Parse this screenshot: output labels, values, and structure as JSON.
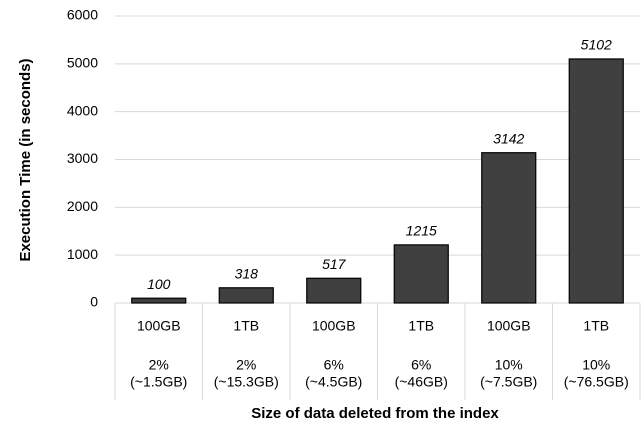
{
  "chart_data": {
    "type": "bar",
    "y_label": "Execution Time (in seconds)",
    "x_label": "Size of data deleted from the index",
    "categories": [
      "100GB",
      "1TB",
      "100GB",
      "1TB",
      "100GB",
      "1TB"
    ],
    "subcategories": [
      [
        "2%",
        "(~1.5GB)"
      ],
      [
        "2%",
        "(~15.3GB)"
      ],
      [
        "6%",
        "(~4.5GB)"
      ],
      [
        "6%",
        "(~46GB)"
      ],
      [
        "10%",
        "(~7.5GB)"
      ],
      [
        "10%",
        "(~76.5GB)"
      ]
    ],
    "values": [
      100,
      318,
      517,
      1215,
      3142,
      5102
    ],
    "color": "#404040",
    "ylim": [
      0,
      6000
    ],
    "yticks": [
      0,
      1000,
      2000,
      3000,
      4000,
      5000,
      6000
    ],
    "grid": true
  }
}
